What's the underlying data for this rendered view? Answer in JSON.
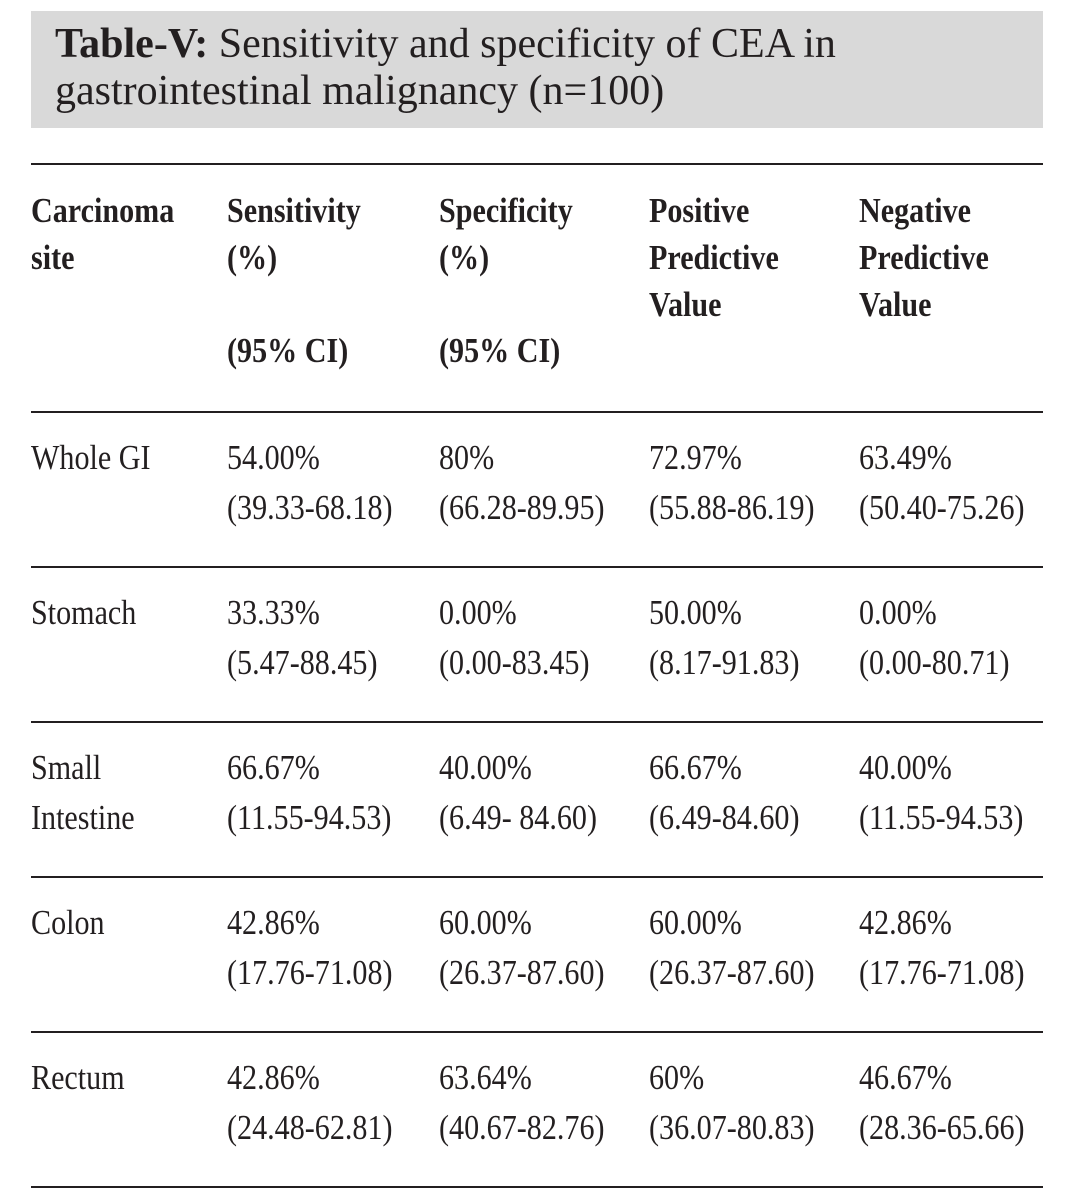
{
  "caption": {
    "label": "Table-V:",
    "text": " Sensitivity and specificity of CEA in gastrointestinal malignancy (n=100)"
  },
  "table": {
    "headers": [
      {
        "line1": "Carcinoma",
        "line2": "site",
        "line3": "",
        "ci": ""
      },
      {
        "line1": "Sensitivity",
        "line2": "(%)",
        "line3": "",
        "ci": "(95% CI)"
      },
      {
        "line1": "Specificity",
        "line2": "(%)",
        "line3": "",
        "ci": "(95% CI)"
      },
      {
        "line1": "Positive",
        "line2": "Predictive",
        "line3": "Value",
        "ci": ""
      },
      {
        "line1": "Negative",
        "line2": "Predictive",
        "line3": "Value",
        "ci": ""
      }
    ],
    "rows": [
      {
        "site": [
          "Whole GI",
          ""
        ],
        "cells": [
          [
            "54.00%",
            "(39.33-68.18)"
          ],
          [
            "80%",
            "(66.28-89.95)"
          ],
          [
            "72.97%",
            "(55.88-86.19)"
          ],
          [
            "63.49%",
            "(50.40-75.26)"
          ]
        ]
      },
      {
        "site": [
          "Stomach",
          ""
        ],
        "cells": [
          [
            "33.33%",
            "(5.47-88.45)"
          ],
          [
            "0.00%",
            "(0.00-83.45)"
          ],
          [
            "50.00%",
            "(8.17-91.83)"
          ],
          [
            "0.00%",
            "(0.00-80.71)"
          ]
        ]
      },
      {
        "site": [
          "Small",
          "Intestine"
        ],
        "cells": [
          [
            "66.67%",
            "(11.55-94.53)"
          ],
          [
            "40.00%",
            "(6.49- 84.60)"
          ],
          [
            "66.67%",
            "(6.49-84.60)"
          ],
          [
            "40.00%",
            "(11.55-94.53)"
          ]
        ]
      },
      {
        "site": [
          "Colon",
          ""
        ],
        "cells": [
          [
            "42.86%",
            "(17.76-71.08)"
          ],
          [
            "60.00%",
            "(26.37-87.60)"
          ],
          [
            "60.00%",
            "(26.37-87.60)"
          ],
          [
            "42.86%",
            "(17.76-71.08)"
          ]
        ]
      },
      {
        "site": [
          "Rectum",
          ""
        ],
        "cells": [
          [
            "42.86%",
            "(24.48-62.81)"
          ],
          [
            "63.64%",
            "(40.67-82.76)"
          ],
          [
            "60%",
            "(36.07-80.83)"
          ],
          [
            "46.67%",
            "(28.36-65.66)"
          ]
        ]
      }
    ]
  },
  "colors": {
    "caption_background": "#d9d9d9",
    "text": "#231f20",
    "rule": "#231f20"
  }
}
